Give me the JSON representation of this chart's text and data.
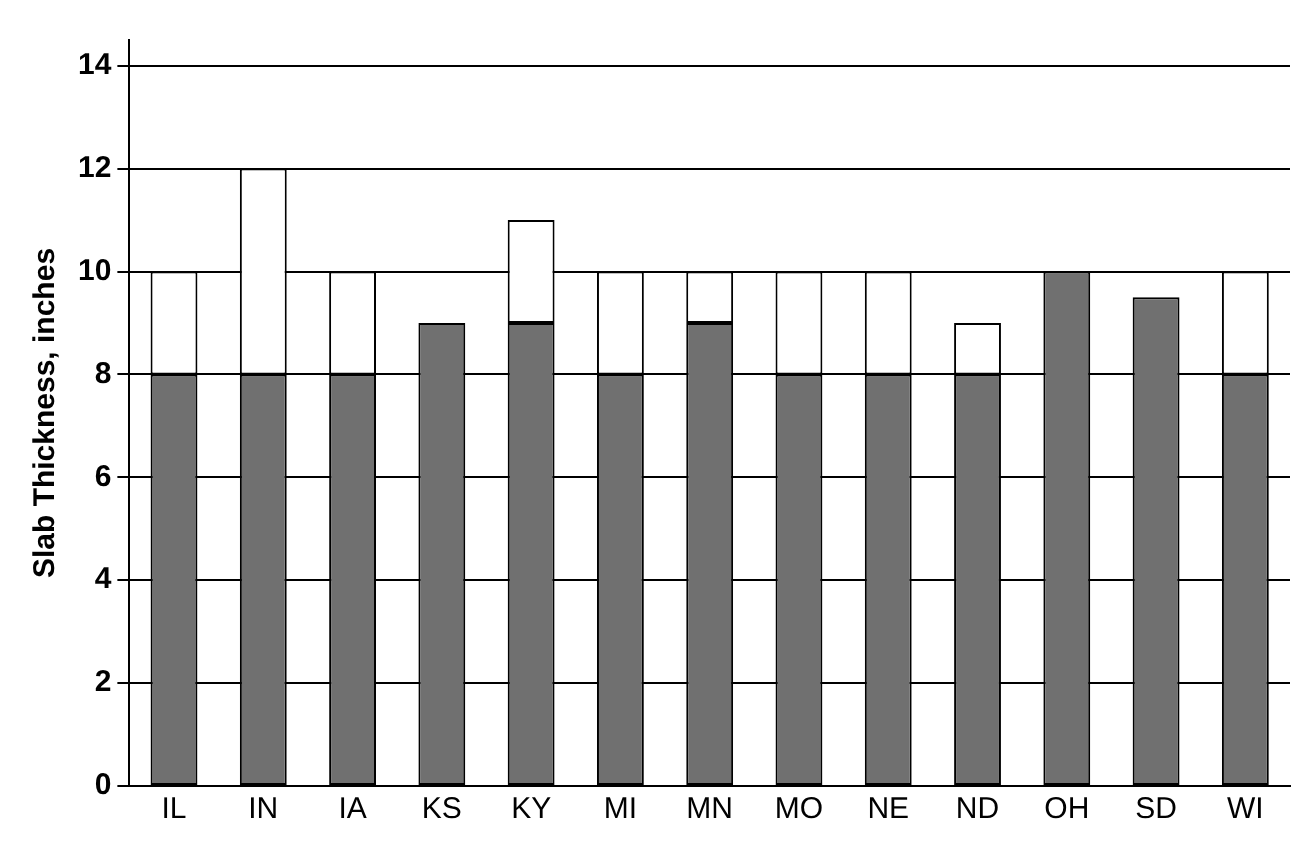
{
  "chart_data": {
    "type": "bar",
    "stacked": true,
    "ylabel": "Slab Thickness, inches",
    "categories": [
      "IL",
      "IN",
      "IA",
      "KS",
      "KY",
      "MI",
      "MN",
      "MO",
      "NE",
      "ND",
      "OH",
      "SD",
      "WI"
    ],
    "series": [
      {
        "color": "#707070",
        "values": [
          8,
          8,
          8,
          9,
          9,
          8,
          9,
          8,
          8,
          8,
          10,
          9.5,
          8
        ]
      },
      {
        "color": "#ffffff",
        "values": [
          2,
          4,
          2,
          null,
          2,
          2,
          1,
          2,
          2,
          1,
          null,
          null,
          2
        ]
      }
    ],
    "ylim": [
      0,
      14.5
    ],
    "yticks": [
      0,
      2,
      4,
      6,
      8,
      10,
      12,
      14
    ],
    "grid": "y",
    "legend": false
  }
}
